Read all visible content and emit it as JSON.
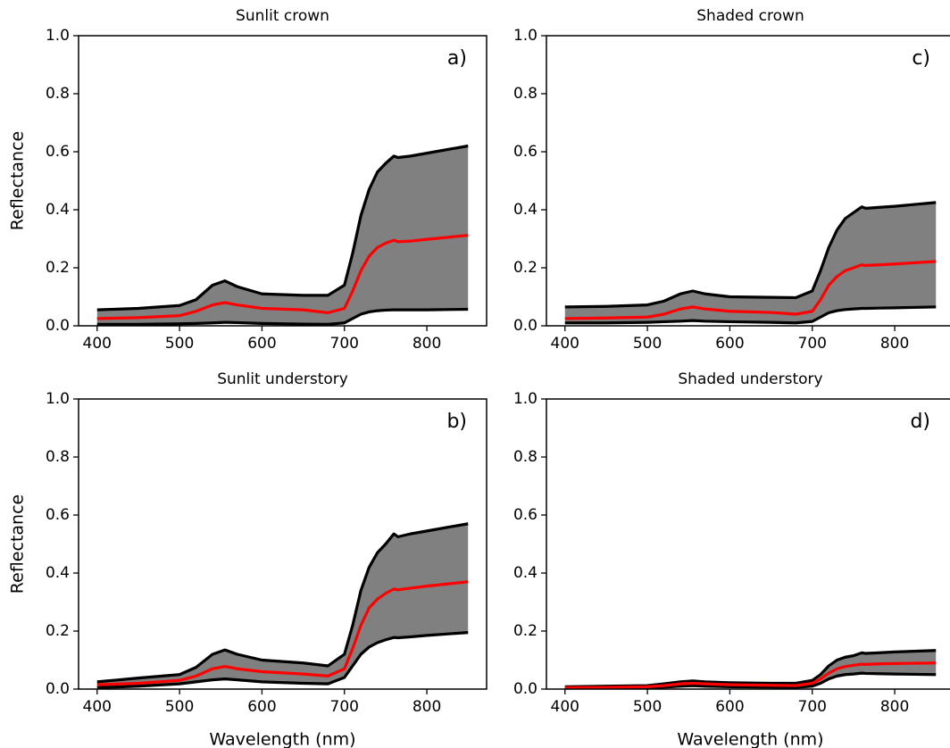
{
  "chart_data": [
    {
      "type": "line",
      "title": "Sunlit crown",
      "annotation": "a)",
      "ylabel": "Reflectance",
      "x": [
        400,
        450,
        500,
        520,
        540,
        555,
        570,
        600,
        650,
        680,
        700,
        710,
        720,
        730,
        740,
        750,
        760,
        765,
        780,
        800,
        850
      ],
      "series": [
        {
          "color": "#000000",
          "values": [
            0.055,
            0.06,
            0.07,
            0.09,
            0.14,
            0.155,
            0.135,
            0.11,
            0.105,
            0.105,
            0.14,
            0.25,
            0.38,
            0.47,
            0.53,
            0.56,
            0.585,
            0.58,
            0.585,
            0.595,
            0.62
          ]
        },
        {
          "color": "#ff0000",
          "values": [
            0.025,
            0.028,
            0.035,
            0.05,
            0.072,
            0.08,
            0.072,
            0.06,
            0.055,
            0.045,
            0.06,
            0.12,
            0.19,
            0.24,
            0.27,
            0.285,
            0.295,
            0.29,
            0.292,
            0.298,
            0.312
          ]
        },
        {
          "color": "#000000",
          "values": [
            0.005,
            0.005,
            0.007,
            0.008,
            0.01,
            0.012,
            0.011,
            0.008,
            0.006,
            0.005,
            0.01,
            0.025,
            0.04,
            0.048,
            0.052,
            0.054,
            0.055,
            0.055,
            0.055,
            0.055,
            0.057
          ]
        }
      ],
      "fill_between": true,
      "fill_color": "#808080",
      "xlim": [
        377.5,
        872.5
      ],
      "xticks": [
        400,
        500,
        600,
        700,
        800
      ],
      "ylim": [
        0,
        1
      ],
      "yticks": [
        {
          "value": 0,
          "label": "0.0"
        },
        0.2,
        0.4,
        0.6,
        0.8,
        {
          "value": 1,
          "label": "1.0"
        }
      ]
    },
    {
      "type": "line",
      "title": "Shaded crown",
      "annotation": "c)",
      "x": [
        400,
        450,
        500,
        520,
        540,
        555,
        570,
        600,
        650,
        680,
        700,
        710,
        720,
        730,
        740,
        750,
        760,
        765,
        780,
        800,
        850
      ],
      "series": [
        {
          "color": "#000000",
          "values": [
            0.065,
            0.067,
            0.072,
            0.085,
            0.11,
            0.12,
            0.11,
            0.1,
            0.098,
            0.097,
            0.12,
            0.19,
            0.27,
            0.33,
            0.37,
            0.39,
            0.41,
            0.405,
            0.408,
            0.412,
            0.425
          ]
        },
        {
          "color": "#ff0000",
          "values": [
            0.025,
            0.027,
            0.03,
            0.04,
            0.058,
            0.065,
            0.058,
            0.05,
            0.046,
            0.04,
            0.05,
            0.09,
            0.14,
            0.17,
            0.19,
            0.2,
            0.21,
            0.208,
            0.21,
            0.213,
            0.222
          ]
        },
        {
          "color": "#000000",
          "values": [
            0.01,
            0.01,
            0.012,
            0.014,
            0.016,
            0.018,
            0.016,
            0.014,
            0.012,
            0.01,
            0.015,
            0.03,
            0.045,
            0.052,
            0.056,
            0.058,
            0.06,
            0.06,
            0.061,
            0.062,
            0.065
          ]
        }
      ],
      "fill_between": true,
      "fill_color": "#808080",
      "xlim": [
        377.5,
        872.5
      ],
      "xticks": [
        400,
        500,
        600,
        700,
        800
      ],
      "ylim": [
        0,
        1
      ],
      "yticks": [
        {
          "value": 0,
          "label": "0.0"
        },
        0.2,
        0.4,
        0.6,
        0.8,
        {
          "value": 1,
          "label": "1.0"
        }
      ]
    },
    {
      "type": "line",
      "title": "Sunlit understory",
      "annotation": "b)",
      "ylabel": "Reflectance",
      "xlabel": "Wavelength (nm)",
      "x": [
        400,
        450,
        500,
        520,
        540,
        555,
        570,
        600,
        650,
        680,
        700,
        710,
        720,
        730,
        740,
        750,
        760,
        765,
        780,
        800,
        850
      ],
      "series": [
        {
          "color": "#000000",
          "values": [
            0.025,
            0.038,
            0.05,
            0.075,
            0.12,
            0.135,
            0.12,
            0.1,
            0.09,
            0.08,
            0.12,
            0.22,
            0.34,
            0.42,
            0.47,
            0.5,
            0.535,
            0.525,
            0.535,
            0.545,
            0.57
          ]
        },
        {
          "color": "#ff0000",
          "values": [
            0.015,
            0.02,
            0.03,
            0.045,
            0.07,
            0.078,
            0.07,
            0.06,
            0.052,
            0.045,
            0.07,
            0.14,
            0.22,
            0.28,
            0.31,
            0.33,
            0.345,
            0.342,
            0.348,
            0.355,
            0.37
          ]
        },
        {
          "color": "#000000",
          "values": [
            0.005,
            0.01,
            0.018,
            0.025,
            0.032,
            0.035,
            0.032,
            0.025,
            0.02,
            0.018,
            0.04,
            0.08,
            0.12,
            0.145,
            0.16,
            0.17,
            0.178,
            0.177,
            0.18,
            0.185,
            0.195
          ]
        }
      ],
      "fill_between": true,
      "fill_color": "#808080",
      "xlim": [
        377.5,
        872.5
      ],
      "xticks": [
        400,
        500,
        600,
        700,
        800
      ],
      "ylim": [
        0,
        1
      ],
      "yticks": [
        {
          "value": 0,
          "label": "0.0"
        },
        0.2,
        0.4,
        0.6,
        0.8,
        {
          "value": 1,
          "label": "1.0"
        }
      ]
    },
    {
      "type": "line",
      "title": "Shaded understory",
      "annotation": "d)",
      "xlabel": "Wavelength (nm)",
      "x": [
        400,
        450,
        500,
        520,
        540,
        555,
        570,
        600,
        650,
        680,
        700,
        710,
        720,
        730,
        740,
        750,
        760,
        765,
        780,
        800,
        850
      ],
      "series": [
        {
          "color": "#000000",
          "values": [
            0.008,
            0.01,
            0.012,
            0.018,
            0.025,
            0.028,
            0.025,
            0.022,
            0.02,
            0.02,
            0.03,
            0.05,
            0.08,
            0.1,
            0.11,
            0.115,
            0.125,
            0.123,
            0.125,
            0.128,
            0.133
          ]
        },
        {
          "color": "#ff0000",
          "values": [
            0.005,
            0.006,
            0.008,
            0.012,
            0.018,
            0.02,
            0.018,
            0.015,
            0.013,
            0.012,
            0.02,
            0.035,
            0.055,
            0.07,
            0.078,
            0.082,
            0.086,
            0.085,
            0.087,
            0.088,
            0.09
          ]
        },
        {
          "color": "#000000",
          "values": [
            0.003,
            0.004,
            0.005,
            0.007,
            0.01,
            0.012,
            0.01,
            0.008,
            0.007,
            0.006,
            0.01,
            0.02,
            0.035,
            0.045,
            0.05,
            0.052,
            0.055,
            0.054,
            0.053,
            0.052,
            0.05
          ]
        }
      ],
      "fill_between": true,
      "fill_color": "#808080",
      "xlim": [
        377.5,
        872.5
      ],
      "xticks": [
        400,
        500,
        600,
        700,
        800
      ],
      "ylim": [
        0,
        1
      ],
      "yticks": [
        {
          "value": 0,
          "label": "0.0"
        },
        0.2,
        0.4,
        0.6,
        0.8,
        {
          "value": 1,
          "label": "1.0"
        }
      ]
    }
  ]
}
